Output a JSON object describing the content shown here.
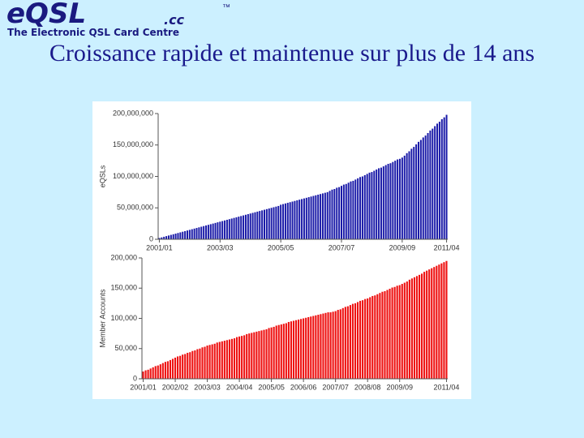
{
  "slide": {
    "logo": "eQSL",
    "logo_suffix": ".cc",
    "trademark": "™",
    "tagline": "The Electronic QSL Card Centre",
    "title": "Croissance rapide et maintenue sur plus de 14 ans"
  },
  "chart_data": [
    {
      "type": "bar",
      "ylabel": "eQSLs",
      "color": "#1a1aa8",
      "categories": [
        "2001/01",
        null,
        null,
        null,
        null,
        null,
        null,
        null,
        null,
        null,
        null,
        null,
        null,
        null,
        null,
        null,
        null,
        null,
        null,
        null,
        null,
        null,
        null,
        null,
        null,
        null,
        "2003/03",
        null,
        null,
        null,
        null,
        null,
        null,
        null,
        null,
        null,
        null,
        null,
        null,
        null,
        null,
        null,
        null,
        null,
        null,
        null,
        null,
        null,
        null,
        null,
        null,
        null,
        "2005/05",
        null,
        null,
        null,
        null,
        null,
        null,
        null,
        null,
        null,
        null,
        null,
        null,
        null,
        null,
        null,
        null,
        null,
        null,
        null,
        null,
        null,
        null,
        null,
        null,
        null,
        "2007/07",
        null,
        null,
        null,
        null,
        null,
        null,
        null,
        null,
        null,
        null,
        null,
        null,
        null,
        null,
        null,
        null,
        null,
        null,
        null,
        null,
        null,
        null,
        null,
        null,
        null,
        "2009/09",
        null,
        null,
        null,
        null,
        null,
        null,
        null,
        null,
        null,
        null,
        null,
        null,
        null,
        null,
        null,
        null,
        null,
        null,
        "2011/04"
      ],
      "values": [
        2000000.0,
        3000000.0,
        4000000.0,
        5000000.0,
        6000000.0,
        7000000.0,
        8000000.0,
        9000000.0,
        10000000.0,
        11000000.0,
        12000000.0,
        13000000.0,
        14000000.0,
        15000000.0,
        16000000.0,
        17000000.0,
        18000000.0,
        19000000.0,
        20000000.0,
        21000000.0,
        22000000.0,
        23000000.0,
        24000000.0,
        25000000.0,
        26000000.0,
        27000000.0,
        28000000.0,
        29000000.0,
        30000000.0,
        31000000.0,
        32000000.0,
        33000000.0,
        34000000.0,
        35000000.0,
        36000000.0,
        37000000.0,
        38000000.0,
        39000000.0,
        40000000.0,
        41000000.0,
        42000000.0,
        43000000.0,
        44000000.0,
        45000000.0,
        46000000.0,
        47000000.0,
        48000000.0,
        49000000.0,
        50000000.0,
        51000000.0,
        52000000.0,
        53000000.0,
        55000000.0,
        56000000.0,
        57000000.0,
        58000000.0,
        59000000.0,
        60000000.0,
        61000000.0,
        62000000.0,
        63000000.0,
        64000000.0,
        65000000.0,
        66000000.0,
        67000000.0,
        68000000.0,
        69000000.0,
        70000000.0,
        71000000.0,
        72000000.0,
        73000000.0,
        74000000.0,
        75000000.0,
        77000000.0,
        79000000.0,
        80000000.0,
        82000000.0,
        83000000.0,
        85000000.0,
        87000000.0,
        88000000.0,
        90000000.0,
        92000000.0,
        93000000.0,
        95000000.0,
        97000000.0,
        99000000.0,
        100000000.0,
        102000000.0,
        104000000.0,
        106000000.0,
        107000000.0,
        109000000.0,
        111000000.0,
        113000000.0,
        114000000.0,
        116000000.0,
        118000000.0,
        120000000.0,
        121000000.0,
        123000000.0,
        125000000.0,
        127000000.0,
        128000000.0,
        130000000.0,
        133000000.0,
        137000000.0,
        140000000.0,
        144000000.0,
        147000000.0,
        151000000.0,
        155000000.0,
        158000000.0,
        162000000.0,
        165000000.0,
        169000000.0,
        173000000.0,
        176000000.0,
        180000000.0,
        184000000.0,
        187000000.0,
        191000000.0,
        194000000.0,
        198000000.0
      ],
      "ylim": [
        0,
        200000000
      ],
      "yticks": [
        0,
        {
          "value": 50000000,
          "label": "50,000,000"
        },
        {
          "value": 100000000,
          "label": "100,000,000"
        },
        {
          "value": 150000000,
          "label": "150,000,000"
        },
        {
          "value": 200000000,
          "label": "200,000,000"
        }
      ]
    },
    {
      "type": "bar",
      "ylabel": "Member Accounts",
      "color": "#ee1111",
      "categories": [
        "2001/01",
        null,
        null,
        null,
        null,
        null,
        null,
        null,
        null,
        null,
        null,
        null,
        null,
        "2002/02",
        null,
        null,
        null,
        null,
        null,
        null,
        null,
        null,
        null,
        null,
        null,
        null,
        "2003/03",
        null,
        null,
        null,
        null,
        null,
        null,
        null,
        null,
        null,
        null,
        null,
        null,
        "2004/04",
        null,
        null,
        null,
        null,
        null,
        null,
        null,
        null,
        null,
        null,
        null,
        null,
        "2005/05",
        null,
        null,
        null,
        null,
        null,
        null,
        null,
        null,
        null,
        null,
        null,
        null,
        "2006/06",
        null,
        null,
        null,
        null,
        null,
        null,
        null,
        null,
        null,
        null,
        null,
        null,
        "2007/07",
        null,
        null,
        null,
        null,
        null,
        null,
        null,
        null,
        null,
        null,
        null,
        null,
        "2008/08",
        null,
        null,
        null,
        null,
        null,
        null,
        null,
        null,
        null,
        null,
        null,
        null,
        "2009/09",
        null,
        null,
        null,
        null,
        null,
        null,
        null,
        null,
        null,
        null,
        null,
        null,
        null,
        null,
        null,
        null,
        null,
        null,
        "2011/04"
      ],
      "values": [
        12000.0,
        14000.0,
        15000.0,
        17000.0,
        19000.0,
        21000.0,
        22000.0,
        24000.0,
        26000.0,
        28000.0,
        29000.0,
        31000.0,
        33000.0,
        35000.0,
        37000.0,
        38000.0,
        40000.0,
        41000.0,
        43000.0,
        44000.0,
        46000.0,
        47000.0,
        49000.0,
        50000.0,
        52000.0,
        53000.0,
        55000.0,
        56000.0,
        57000.0,
        58000.0,
        60000.0,
        61000.0,
        62000.0,
        63000.0,
        64000.0,
        65000.0,
        66000.0,
        67000.0,
        69000.0,
        70000.0,
        71000.0,
        72000.0,
        74000.0,
        75000.0,
        76000.0,
        77000.0,
        78000.0,
        79000.0,
        80000.0,
        81000.0,
        82000.0,
        84000.0,
        85000.0,
        86000.0,
        88000.0,
        89000.0,
        90000.0,
        91000.0,
        92000.0,
        94000.0,
        95000.0,
        96000.0,
        97000.0,
        98000.0,
        99000.0,
        100000.0,
        101000.0,
        102000.0,
        103000.0,
        104000.0,
        105000.0,
        106000.0,
        107000.0,
        108000.0,
        109000.0,
        110000.0,
        110000.0,
        111000.0,
        112000.0,
        114000.0,
        115000.0,
        117000.0,
        119000.0,
        120000.0,
        122000.0,
        124000.0,
        125000.0,
        127000.0,
        129000.0,
        130000.0,
        132000.0,
        133000.0,
        135000.0,
        137000.0,
        138000.0,
        140000.0,
        142000.0,
        144000.0,
        145000.0,
        147000.0,
        149000.0,
        151000.0,
        152000.0,
        154000.0,
        155000.0,
        157000.0,
        159000.0,
        161000.0,
        164000.0,
        166000.0,
        168000.0,
        170000.0,
        172000.0,
        174000.0,
        177000.0,
        179000.0,
        181000.0,
        183000.0,
        185000.0,
        187000.0,
        189000.0,
        191000.0,
        193000.0,
        195000.0
      ],
      "ylim": [
        0,
        200000
      ],
      "yticks": [
        0,
        {
          "value": 50000,
          "label": "50,000"
        },
        {
          "value": 100000,
          "label": "100,000"
        },
        {
          "value": 150000,
          "label": "150,000"
        },
        {
          "value": 200000,
          "label": "200,000"
        }
      ]
    }
  ]
}
